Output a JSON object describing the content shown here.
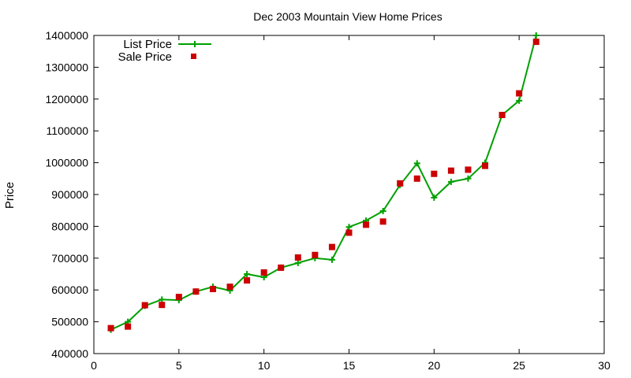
{
  "chart_data": {
    "type": "line",
    "title": "Dec 2003 Mountain View Home Prices",
    "xlabel": "",
    "ylabel": "Price",
    "xlim": [
      0,
      30
    ],
    "ylim": [
      400000,
      1400000
    ],
    "xticks": [
      0,
      5,
      10,
      15,
      20,
      25,
      30
    ],
    "yticks": [
      400000,
      500000,
      600000,
      700000,
      800000,
      900000,
      1000000,
      1100000,
      1200000,
      1300000,
      1400000
    ],
    "grid": false,
    "legend_position": "top-left",
    "x": [
      1,
      2,
      3,
      4,
      5,
      6,
      7,
      8,
      9,
      10,
      11,
      12,
      13,
      14,
      15,
      16,
      17,
      18,
      19,
      20,
      21,
      22,
      23,
      24,
      25,
      26
    ],
    "series": [
      {
        "name": "List Price",
        "style": "line+cross",
        "color": "#00a000",
        "values": [
          475000,
          500000,
          550000,
          570000,
          568000,
          595000,
          610000,
          598000,
          650000,
          640000,
          670000,
          685000,
          700000,
          695000,
          798000,
          818000,
          848000,
          930000,
          998000,
          890000,
          940000,
          950000,
          1000000,
          1150000,
          1195000,
          1400000
        ]
      },
      {
        "name": "Sale Price",
        "style": "square",
        "color": "#cc0000",
        "values": [
          480000,
          485000,
          552000,
          553000,
          578000,
          595000,
          603000,
          610000,
          630000,
          655000,
          670000,
          702000,
          710000,
          735000,
          780000,
          805000,
          815000,
          935000,
          950000,
          965000,
          975000,
          978000,
          990000,
          1150000,
          1218000,
          1380000
        ]
      }
    ]
  }
}
